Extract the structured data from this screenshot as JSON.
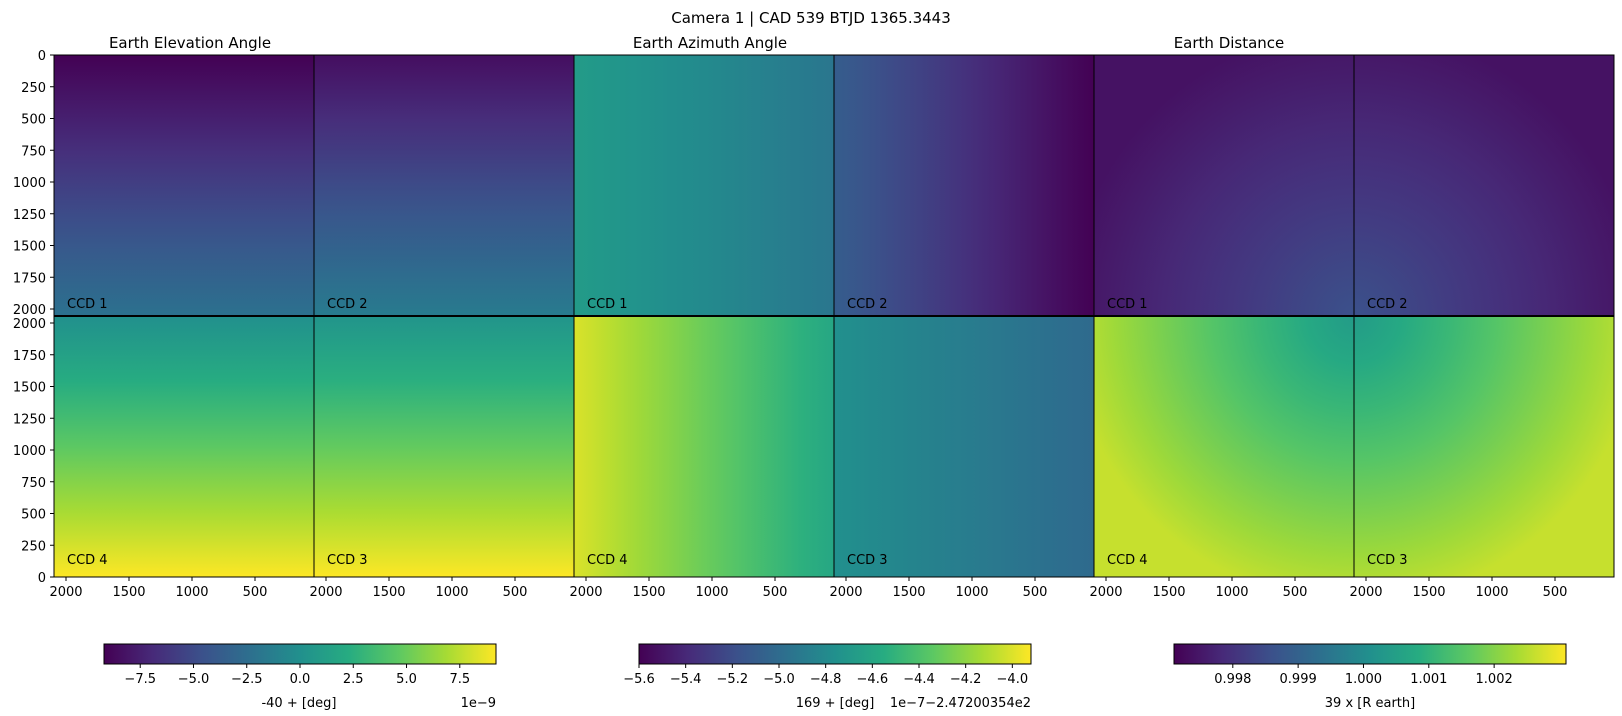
{
  "figure": {
    "suptitle": "Camera 1 | CAD 539 BTJD 1365.3443"
  },
  "colors": {
    "colormap": "viridis",
    "grid_lines": "#000000",
    "background": "#ffffff"
  },
  "chart_data": [
    {
      "type": "heatmap",
      "title": "Earth Elevation Angle",
      "quadrants": [
        {
          "label": "CCD 1",
          "position": "top-left",
          "gradient": "vertical",
          "value_top": 0.0,
          "value_bottom": 0.38
        },
        {
          "label": "CCD 2",
          "position": "top-right",
          "gradient": "vertical",
          "value_top": 0.04,
          "value_bottom": 0.42
        },
        {
          "label": "CCD 4",
          "position": "bottom-left",
          "gradient": "vertical",
          "value_top": 0.5,
          "value_bottom": 1.0
        },
        {
          "label": "CCD 3",
          "position": "bottom-right",
          "gradient": "vertical",
          "value_top": 0.52,
          "value_bottom": 1.0
        }
      ],
      "xticks": [
        "2000",
        "1500",
        "1000",
        "500"
      ],
      "yticks_top": [
        "0",
        "250",
        "500",
        "750",
        "1000",
        "1250",
        "1500",
        "1750",
        "2000"
      ],
      "yticks_bottom": [
        "2000",
        "1750",
        "1500",
        "1250",
        "1000",
        "750",
        "500",
        "250",
        "0"
      ],
      "colorbar": {
        "ticks": [
          "−7.5",
          "−5.0",
          "−2.5",
          "0.0",
          "2.5",
          "5.0",
          "7.5"
        ],
        "range": [
          -9.2,
          9.2
        ],
        "label": "-40 +  [deg]",
        "offset": "1e−9"
      }
    },
    {
      "type": "heatmap",
      "title": "Earth Azimuth Angle",
      "quadrants": [
        {
          "label": "CCD 1",
          "position": "top-left",
          "gradient": "horizontal",
          "value_left": 0.55,
          "value_right": 0.4
        },
        {
          "label": "CCD 2",
          "position": "top-right",
          "gradient": "horizontal",
          "value_left": 0.3,
          "value_right": 0.0
        },
        {
          "label": "CCD 4",
          "position": "bottom-left",
          "gradient": "horizontal",
          "value_left": 0.95,
          "value_right": 0.6
        },
        {
          "label": "CCD 3",
          "position": "bottom-right",
          "gradient": "horizontal",
          "value_left": 0.5,
          "value_right": 0.35
        }
      ],
      "xticks": [
        "2000",
        "1500",
        "1000",
        "500"
      ],
      "colorbar": {
        "ticks": [
          "−5.6",
          "−5.4",
          "−5.2",
          "−5.0",
          "−4.8",
          "−4.6",
          "−4.4",
          "−4.2",
          "−4.0"
        ],
        "range": [
          -5.6,
          -3.92
        ],
        "label": "169 +  [deg]",
        "offset": "1e−7−2.47200354e2"
      }
    },
    {
      "type": "heatmap",
      "title": "Earth Distance",
      "quadrants": [
        {
          "label": "CCD 1",
          "position": "top-left",
          "gradient": "radial",
          "value_left": 0.05,
          "value_right": 0.25
        },
        {
          "label": "CCD 2",
          "position": "top-right",
          "gradient": "radial",
          "value_left": 0.25,
          "value_right": 0.05
        },
        {
          "label": "CCD 4",
          "position": "bottom-left",
          "gradient": "radial",
          "value_left": 0.92,
          "value_right": 0.55
        },
        {
          "label": "CCD 3",
          "position": "bottom-right",
          "gradient": "radial",
          "value_left": 0.55,
          "value_right": 0.92
        }
      ],
      "xticks": [
        "2000",
        "1500",
        "1000",
        "500"
      ],
      "colorbar": {
        "ticks": [
          "0.998",
          "0.999",
          "1.000",
          "1.001",
          "1.002"
        ],
        "range": [
          0.9971,
          1.0031
        ],
        "label": "39 x [R earth]",
        "offset": ""
      }
    }
  ]
}
